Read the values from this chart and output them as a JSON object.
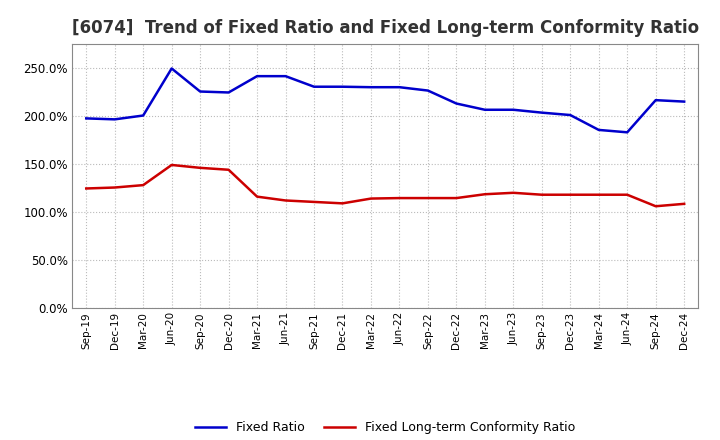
{
  "title": "[6074]  Trend of Fixed Ratio and Fixed Long-term Conformity Ratio",
  "x_labels": [
    "Sep-19",
    "Dec-19",
    "Mar-20",
    "Jun-20",
    "Sep-20",
    "Dec-20",
    "Mar-21",
    "Jun-21",
    "Sep-21",
    "Dec-21",
    "Mar-22",
    "Jun-22",
    "Sep-22",
    "Dec-22",
    "Mar-23",
    "Jun-23",
    "Sep-23",
    "Dec-23",
    "Mar-24",
    "Jun-24",
    "Sep-24",
    "Dec-24"
  ],
  "fixed_ratio": [
    1.975,
    1.965,
    2.005,
    2.495,
    2.255,
    2.245,
    2.415,
    2.415,
    2.305,
    2.305,
    2.3,
    2.3,
    2.265,
    2.13,
    2.065,
    2.065,
    2.035,
    2.01,
    1.855,
    1.83,
    2.165,
    2.15
  ],
  "fixed_lt_ratio": [
    1.245,
    1.255,
    1.28,
    1.49,
    1.46,
    1.44,
    1.16,
    1.12,
    1.105,
    1.09,
    1.14,
    1.145,
    1.145,
    1.145,
    1.185,
    1.2,
    1.18,
    1.18,
    1.18,
    1.18,
    1.06,
    1.085
  ],
  "fixed_ratio_color": "#0000CC",
  "fixed_lt_ratio_color": "#CC0000",
  "bg_color": "#FFFFFF",
  "plot_bg_color": "#FFFFFF",
  "grid_color": "#BBBBBB",
  "title_fontsize": 12,
  "legend_labels": [
    "Fixed Ratio",
    "Fixed Long-term Conformity Ratio"
  ]
}
